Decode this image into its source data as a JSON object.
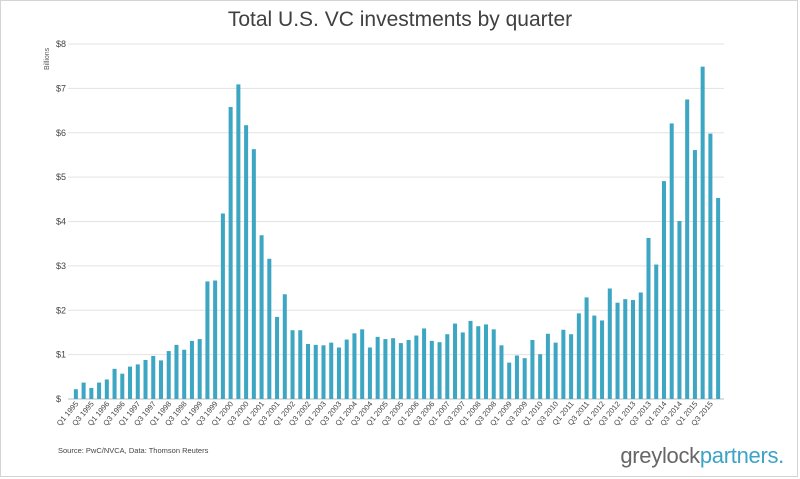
{
  "chart_data": {
    "type": "bar",
    "title": "Total U.S. VC investments by quarter",
    "ylabel": "Billions",
    "xlabel": "",
    "ylim": [
      0,
      8
    ],
    "yticks": [
      0,
      1,
      2,
      3,
      4,
      5,
      6,
      7,
      8
    ],
    "ytick_labels": [
      "$",
      "$1",
      "$2",
      "$3",
      "$4",
      "$5",
      "$6",
      "$7",
      "$8"
    ],
    "grid": true,
    "bar_color": "#3da6c3",
    "categories": [
      "Q1 1995",
      "Q2 1995",
      "Q3 1995",
      "Q4 1995",
      "Q1 1996",
      "Q2 1996",
      "Q3 1996",
      "Q4 1996",
      "Q1 1997",
      "Q2 1997",
      "Q3 1997",
      "Q4 1997",
      "Q1 1998",
      "Q2 1998",
      "Q3 1998",
      "Q4 1998",
      "Q1 1999",
      "Q2 1999",
      "Q3 1999",
      "Q4 1999",
      "Q1 2000",
      "Q2 2000",
      "Q3 2000",
      "Q4 2000",
      "Q1 2001",
      "Q2 2001",
      "Q3 2001",
      "Q4 2001",
      "Q1 2002",
      "Q2 2002",
      "Q3 2002",
      "Q4 2002",
      "Q1 2003",
      "Q2 2003",
      "Q3 2003",
      "Q4 2003",
      "Q1 2004",
      "Q2 2004",
      "Q3 2004",
      "Q4 2004",
      "Q1 2005",
      "Q2 2005",
      "Q3 2005",
      "Q4 2005",
      "Q1 2006",
      "Q2 2006",
      "Q3 2006",
      "Q4 2006",
      "Q1 2007",
      "Q2 2007",
      "Q3 2007",
      "Q4 2007",
      "Q1 2008",
      "Q2 2008",
      "Q3 2008",
      "Q4 2008",
      "Q1 2009",
      "Q2 2009",
      "Q3 2009",
      "Q4 2009",
      "Q1 2010",
      "Q2 2010",
      "Q3 2010",
      "Q4 2010",
      "Q1 2011",
      "Q2 2011",
      "Q3 2011",
      "Q4 2011",
      "Q1 2012",
      "Q2 2012",
      "Q3 2012",
      "Q4 2012",
      "Q1 2013",
      "Q2 2013",
      "Q3 2013",
      "Q4 2013",
      "Q1 2014",
      "Q2 2014",
      "Q3 2014",
      "Q4 2014",
      "Q1 2015",
      "Q2 2015",
      "Q3 2015",
      "Q4 2015"
    ],
    "tick_labels": [
      "Q1 1995",
      "Q3 1995",
      "Q1 1996",
      "Q3 1996",
      "Q1 1997",
      "Q3 1997",
      "Q1 1998",
      "Q3 1998",
      "Q1 1999",
      "Q3 1999",
      "Q1 2000",
      "Q3 2000",
      "Q1 2001",
      "Q3 2001",
      "Q1 2002",
      "Q3 2002",
      "Q1 2003",
      "Q3 2003",
      "Q1 2004",
      "Q3 2004",
      "Q1 2005",
      "Q3 2005",
      "Q1 2006",
      "Q3 2006",
      "Q1 2007",
      "Q3 2007",
      "Q1 2008",
      "Q3 2008",
      "Q1 2009",
      "Q3 2009",
      "Q1 2010",
      "Q3 2010",
      "Q1 2011",
      "Q3 2011",
      "Q1 2012",
      "Q3 2012",
      "Q1 2013",
      "Q3 2013",
      "Q1 2014",
      "Q3 2014",
      "Q1 2015",
      "Q3 2015"
    ],
    "values": [
      0.22,
      0.37,
      0.25,
      0.37,
      0.44,
      0.68,
      0.57,
      0.73,
      0.78,
      0.88,
      0.97,
      0.87,
      1.08,
      1.22,
      1.11,
      1.31,
      1.35,
      2.65,
      2.67,
      4.18,
      6.58,
      7.09,
      6.17,
      5.63,
      3.69,
      3.16,
      1.85,
      2.36,
      1.55,
      1.55,
      1.24,
      1.22,
      1.21,
      1.27,
      1.16,
      1.34,
      1.48,
      1.57,
      1.16,
      1.4,
      1.35,
      1.37,
      1.26,
      1.33,
      1.43,
      1.59,
      1.31,
      1.28,
      1.46,
      1.7,
      1.5,
      1.76,
      1.64,
      1.68,
      1.57,
      1.21,
      0.82,
      0.98,
      0.92,
      1.33,
      1.01,
      1.47,
      1.27,
      1.56,
      1.46,
      1.93,
      2.29,
      1.88,
      1.77,
      2.49,
      2.17,
      2.25,
      2.23,
      2.4,
      3.63,
      3.03,
      4.91,
      6.21,
      4.01,
      6.75,
      5.61,
      7.49,
      5.98,
      4.53
    ]
  },
  "source_note": "Source: PwC/NVCA, Data: Thomson Reuters",
  "logo": {
    "part1": "greylock",
    "part2": "partners."
  }
}
